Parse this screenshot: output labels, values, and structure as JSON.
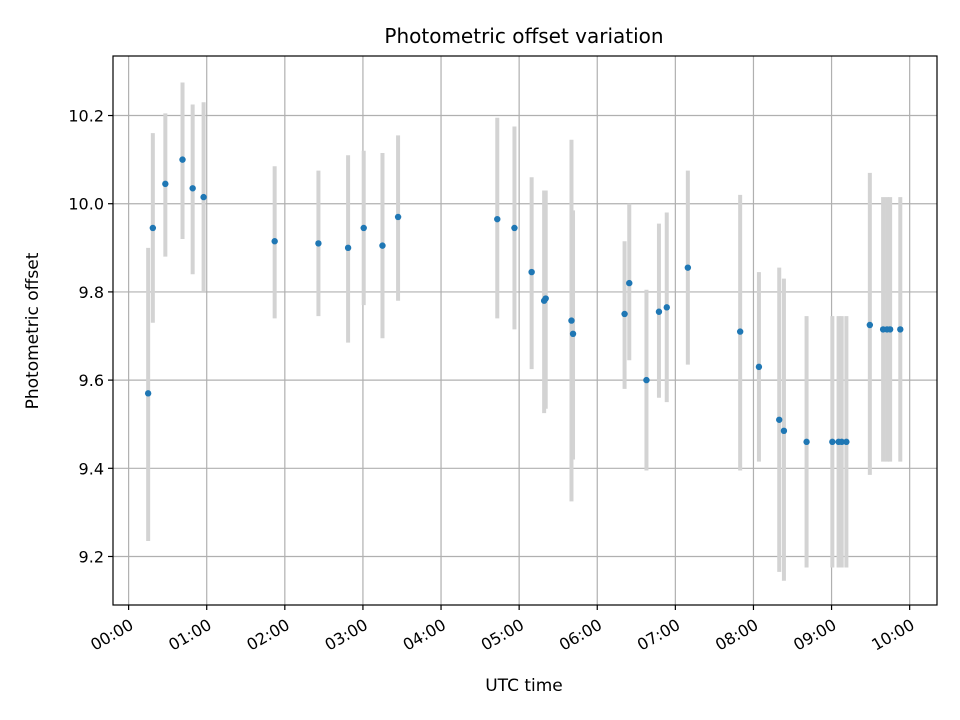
{
  "chart_data": {
    "type": "scatter",
    "title": "Photometric offset variation",
    "xlabel": "UTC time",
    "ylabel": "Photometric offset",
    "x_unit": "hours since 00:00 UTC",
    "xlim": [
      -0.2,
      10.35
    ],
    "ylim": [
      9.09,
      10.335
    ],
    "grid": true,
    "x_ticks": [
      0,
      1,
      2,
      3,
      4,
      5,
      6,
      7,
      8,
      9,
      10
    ],
    "x_tick_labels": [
      "00:00",
      "01:00",
      "02:00",
      "03:00",
      "04:00",
      "05:00",
      "06:00",
      "07:00",
      "08:00",
      "09:00",
      "10:00"
    ],
    "y_ticks": [
      9.2,
      9.4,
      9.6,
      9.8,
      10.0,
      10.2
    ],
    "y_tick_labels": [
      "9.2",
      "9.4",
      "9.6",
      "9.8",
      "10.0",
      "10.2"
    ],
    "colors": {
      "point": "#1f77b4",
      "errorbar": "#d3d3d3",
      "grid": "#b0b0b0"
    },
    "points": [
      {
        "x": 0.25,
        "y": 9.57,
        "lo": 9.235,
        "hi": 9.9
      },
      {
        "x": 0.31,
        "y": 9.945,
        "lo": 9.73,
        "hi": 10.16
      },
      {
        "x": 0.47,
        "y": 10.045,
        "lo": 9.88,
        "hi": 10.205
      },
      {
        "x": 0.69,
        "y": 10.1,
        "lo": 9.92,
        "hi": 10.275
      },
      {
        "x": 0.82,
        "y": 10.035,
        "lo": 9.84,
        "hi": 10.225
      },
      {
        "x": 0.96,
        "y": 10.015,
        "lo": 9.8,
        "hi": 10.23
      },
      {
        "x": 1.87,
        "y": 9.915,
        "lo": 9.74,
        "hi": 10.085
      },
      {
        "x": 2.43,
        "y": 9.91,
        "lo": 9.745,
        "hi": 10.075
      },
      {
        "x": 2.81,
        "y": 9.9,
        "lo": 9.685,
        "hi": 10.11
      },
      {
        "x": 3.01,
        "y": 9.945,
        "lo": 9.77,
        "hi": 10.12
      },
      {
        "x": 3.25,
        "y": 9.905,
        "lo": 9.695,
        "hi": 10.115
      },
      {
        "x": 3.45,
        "y": 9.97,
        "lo": 9.78,
        "hi": 10.155
      },
      {
        "x": 4.72,
        "y": 9.965,
        "lo": 9.74,
        "hi": 10.195
      },
      {
        "x": 4.94,
        "y": 9.945,
        "lo": 9.715,
        "hi": 10.175
      },
      {
        "x": 5.16,
        "y": 9.845,
        "lo": 9.625,
        "hi": 10.06
      },
      {
        "x": 5.32,
        "y": 9.78,
        "lo": 9.525,
        "hi": 10.03
      },
      {
        "x": 5.34,
        "y": 9.785,
        "lo": 9.535,
        "hi": 10.03
      },
      {
        "x": 5.67,
        "y": 9.735,
        "lo": 9.325,
        "hi": 10.145
      },
      {
        "x": 5.69,
        "y": 9.705,
        "lo": 9.42,
        "hi": 9.985
      },
      {
        "x": 6.35,
        "y": 9.75,
        "lo": 9.58,
        "hi": 9.915
      },
      {
        "x": 6.41,
        "y": 9.82,
        "lo": 9.645,
        "hi": 10.0
      },
      {
        "x": 6.63,
        "y": 9.6,
        "lo": 9.395,
        "hi": 9.805
      },
      {
        "x": 6.79,
        "y": 9.755,
        "lo": 9.56,
        "hi": 9.955
      },
      {
        "x": 6.89,
        "y": 9.765,
        "lo": 9.55,
        "hi": 9.98
      },
      {
        "x": 7.16,
        "y": 9.855,
        "lo": 9.635,
        "hi": 10.075
      },
      {
        "x": 7.83,
        "y": 9.71,
        "lo": 9.395,
        "hi": 10.02
      },
      {
        "x": 8.07,
        "y": 9.63,
        "lo": 9.415,
        "hi": 9.845
      },
      {
        "x": 8.33,
        "y": 9.51,
        "lo": 9.165,
        "hi": 9.855
      },
      {
        "x": 8.39,
        "y": 9.485,
        "lo": 9.145,
        "hi": 9.83
      },
      {
        "x": 8.68,
        "y": 9.46,
        "lo": 9.175,
        "hi": 9.745
      },
      {
        "x": 9.01,
        "y": 9.46,
        "lo": 9.175,
        "hi": 9.745
      },
      {
        "x": 9.09,
        "y": 9.46,
        "lo": 9.175,
        "hi": 9.745
      },
      {
        "x": 9.13,
        "y": 9.46,
        "lo": 9.175,
        "hi": 9.745
      },
      {
        "x": 9.19,
        "y": 9.46,
        "lo": 9.175,
        "hi": 9.745
      },
      {
        "x": 9.49,
        "y": 9.725,
        "lo": 9.385,
        "hi": 10.07
      },
      {
        "x": 9.66,
        "y": 9.715,
        "lo": 9.415,
        "hi": 10.015
      },
      {
        "x": 9.71,
        "y": 9.715,
        "lo": 9.415,
        "hi": 10.015
      },
      {
        "x": 9.75,
        "y": 9.715,
        "lo": 9.415,
        "hi": 10.015
      },
      {
        "x": 9.88,
        "y": 9.715,
        "lo": 9.415,
        "hi": 10.015
      }
    ]
  }
}
